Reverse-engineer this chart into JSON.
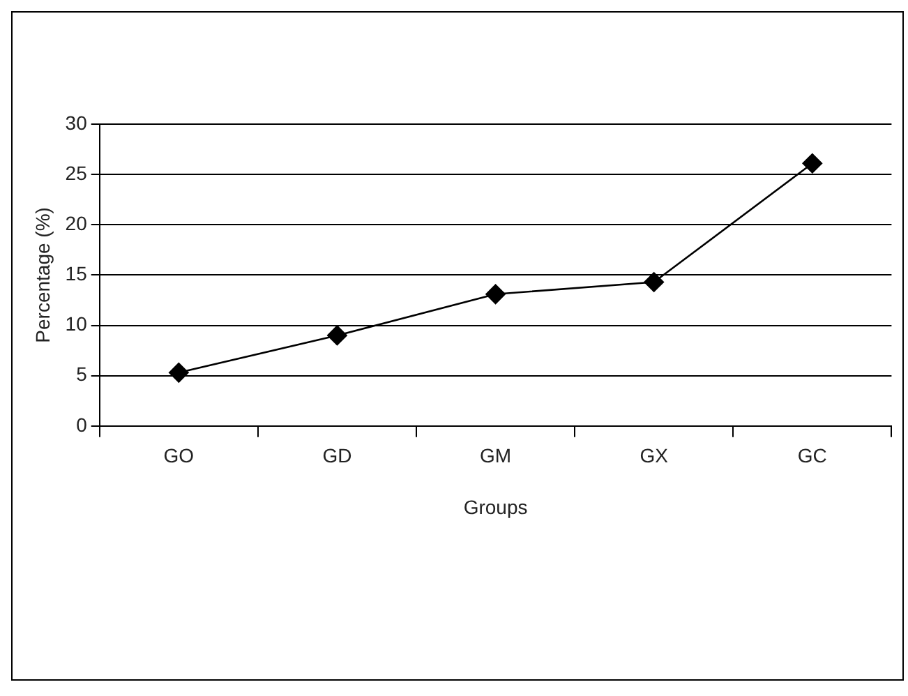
{
  "chart_data": {
    "type": "line",
    "xlabel": "Groups",
    "ylabel": "Percentage (%)",
    "categories": [
      "GO",
      "GD",
      "GM",
      "GX",
      "GC"
    ],
    "series": [
      {
        "color": "#000000",
        "values": [
          5.3,
          9.0,
          13.1,
          14.3,
          26.1
        ]
      }
    ],
    "ylim": [
      0,
      30
    ],
    "yticks": [
      0,
      5,
      10,
      15,
      20,
      25,
      30
    ],
    "grid": "y",
    "marker": "diamond",
    "line_style": "solid"
  }
}
